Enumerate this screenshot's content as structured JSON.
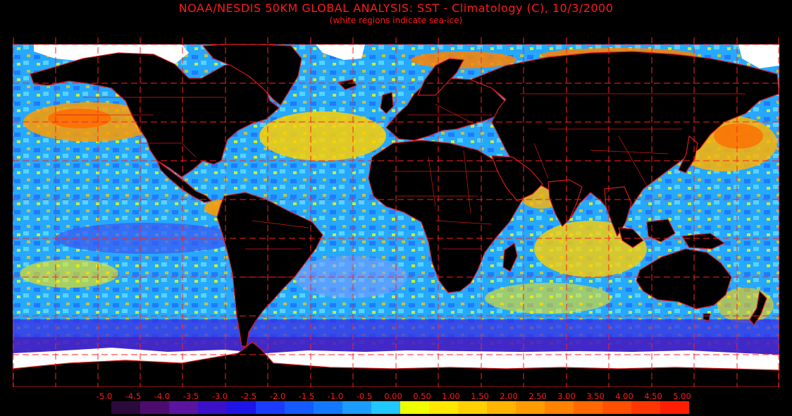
{
  "header": {
    "title": "NOAA/NESDIS 50KM GLOBAL ANALYSIS: SST - Climatology (C), 10/3/2000",
    "subtitle": "(white regions indicate sea-ice)"
  },
  "map": {
    "type": "sea surface temperature anomaly map",
    "projection": "equirectangular",
    "land_color": "#000000",
    "sea_ice_color": "#ffffff",
    "border_color": "#e0201a",
    "graticule_color": "#ff2020",
    "graticule_style": "dashed"
  },
  "legend": {
    "unit": "C",
    "tick_labels": [
      "-5.0",
      "-4.5",
      "-4.0",
      "-3.5",
      "-3.0",
      "-2.5",
      "-2.0",
      "-1.5",
      "-1.0",
      "-0.5",
      "0.00",
      "0.50",
      "1.00",
      "1.50",
      "2.00",
      "2.50",
      "3.00",
      "3.50",
      "4.00",
      "4.50",
      "5.00"
    ],
    "colors": [
      "#2a0a3a",
      "#4b0c6e",
      "#5a14a0",
      "#3a10c8",
      "#1e14e6",
      "#1a3cff",
      "#145aff",
      "#1478ff",
      "#1c9cff",
      "#20c8ff",
      "#f0ff00",
      "#ffe800",
      "#ffd000",
      "#ffb400",
      "#ff9c00",
      "#ff8200",
      "#ff6800",
      "#ff5000",
      "#ff3600",
      "#ff1e00"
    ]
  }
}
